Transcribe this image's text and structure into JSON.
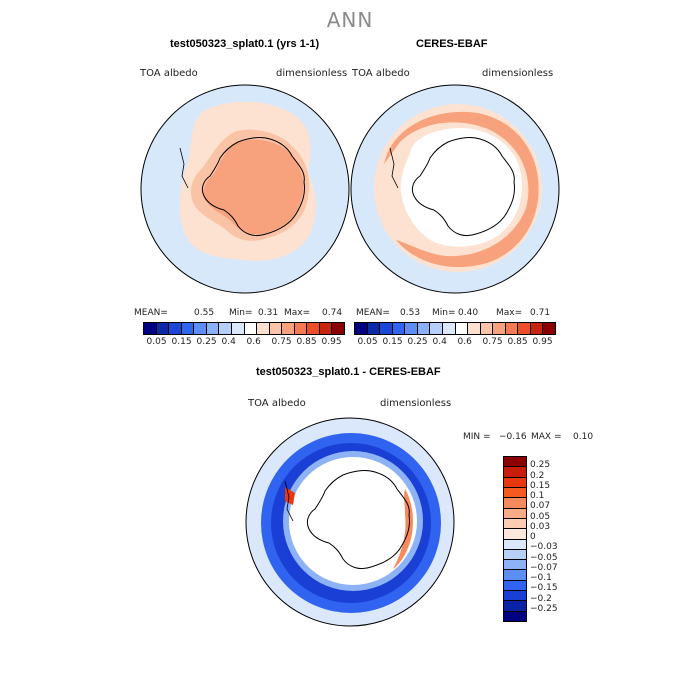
{
  "title": "ANN",
  "panels": {
    "left": {
      "title": "test050323_splat0.1 (yrs 1-1)",
      "var_label": "TOA albedo",
      "unit_label": "dimensionless",
      "mean_label": "MEAN=",
      "mean": "0.55",
      "min_label": "Min=",
      "min": "0.31",
      "max_label": "Max=",
      "max": "0.74"
    },
    "right": {
      "title": "CERES-EBAF",
      "var_label": "TOA albedo",
      "unit_label": "dimensionless",
      "mean_label": "MEAN=",
      "mean": "0.53",
      "min_label": "Min=",
      "min": "0.40",
      "max_label": "Max=",
      "max": "0.71"
    },
    "diff": {
      "title": "test050323_splat0.1 - CERES-EBAF",
      "var_label": "TOA albedo",
      "unit_label": "dimensionless",
      "min_label": "MIN =",
      "min": "−0.16",
      "max_label": "MAX =",
      "max": "0.10"
    }
  },
  "colorbars": {
    "abs_ticks": [
      "0.05",
      "0.15",
      "0.25",
      "0.4",
      "0.6",
      "0.75",
      "0.85",
      "0.95"
    ],
    "abs_colors": [
      "#000080",
      "#0a2aa8",
      "#1a47d8",
      "#2f66f0",
      "#5d8ef5",
      "#8ab0f8",
      "#b5cff8",
      "#dbe8fb",
      "#ffffff",
      "#fde0cf",
      "#fbc4a6",
      "#f7a27d",
      "#f47a52",
      "#ec4d2a",
      "#c9240e",
      "#8b0000"
    ],
    "diff_labels": [
      "0.25",
      "0.2",
      "0.15",
      "0.1",
      "0.07",
      "0.05",
      "0.03",
      "0",
      "−0.03",
      "−0.05",
      "−0.07",
      "−0.1",
      "−0.15",
      "−0.2",
      "−0.25"
    ],
    "diff_colors": [
      "#8b0000",
      "#c81d0a",
      "#e8380f",
      "#f55a1e",
      "#f78a5d",
      "#f9ab86",
      "#fbcdb2",
      "#fde8dc",
      "#dbe8fb",
      "#b7d0f7",
      "#8db3f6",
      "#5c8ff4",
      "#2f63f0",
      "#1a3fd5",
      "#0a22a5",
      "#000080"
    ]
  },
  "chart_data": [
    {
      "type": "heatmap",
      "projection": "south polar stereographic",
      "title": "test050323_splat0.1 (yrs 1-1)",
      "variable": "TOA albedo",
      "units": "dimensionless",
      "levels": [
        0.05,
        0.1,
        0.15,
        0.2,
        0.25,
        0.3,
        0.4,
        0.5,
        0.6,
        0.7,
        0.75,
        0.8,
        0.85,
        0.9,
        0.95
      ],
      "stats": {
        "mean": 0.55,
        "min": 0.31,
        "max": 0.74
      }
    },
    {
      "type": "heatmap",
      "projection": "south polar stereographic",
      "title": "CERES-EBAF",
      "variable": "TOA albedo",
      "units": "dimensionless",
      "levels": [
        0.05,
        0.1,
        0.15,
        0.2,
        0.25,
        0.3,
        0.4,
        0.5,
        0.6,
        0.7,
        0.75,
        0.8,
        0.85,
        0.9,
        0.95
      ],
      "stats": {
        "mean": 0.53,
        "min": 0.4,
        "max": 0.71
      }
    },
    {
      "type": "heatmap",
      "projection": "south polar stereographic",
      "title": "test050323_splat0.1 - CERES-EBAF",
      "variable": "TOA albedo",
      "units": "dimensionless",
      "levels": [
        -0.25,
        -0.2,
        -0.15,
        -0.1,
        -0.07,
        -0.05,
        -0.03,
        0,
        0.03,
        0.05,
        0.07,
        0.1,
        0.15,
        0.2,
        0.25
      ],
      "stats": {
        "min": -0.16,
        "max": 0.1
      }
    }
  ]
}
